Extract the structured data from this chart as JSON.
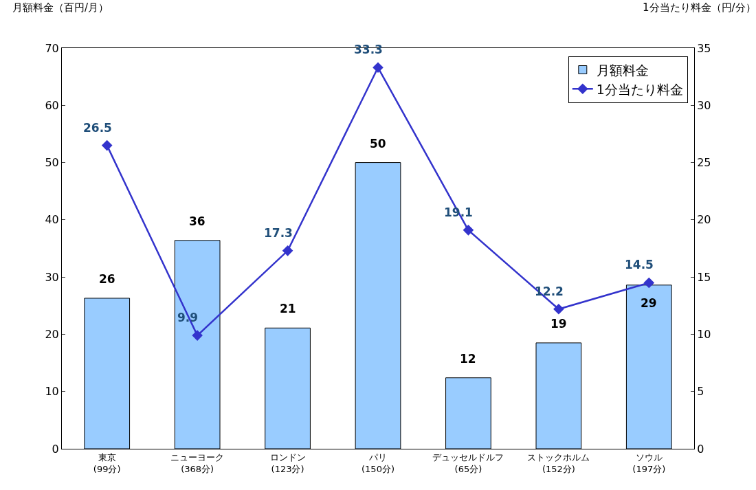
{
  "chart_data": {
    "type": "bar",
    "ylabel": "月額料金（百円/月）",
    "y2label": "1分当たり料金（円/分）",
    "categories": [
      "東京\n(99分)",
      "ニューヨーク\n(368分)",
      "ロンドン\n(123分)",
      "パリ\n(150分)",
      "デュッセルドルフ\n(65分)",
      "ストックホルム\n(152分)",
      "ソウル\n(197分)"
    ],
    "series": [
      {
        "name": "月額料金",
        "color": "#99ccff",
        "values": [
          26.3,
          36.4,
          21.1,
          50,
          12.4,
          18.5,
          28.6
        ],
        "value_labels": [
          "26",
          "36",
          "21",
          "50",
          "12",
          "19",
          "29"
        ]
      },
      {
        "name": "1分当たり料金",
        "type": "line",
        "axis": "y2",
        "color": "#3333cc",
        "marker": "diamond",
        "values": [
          26.5,
          9.9,
          17.3,
          33.3,
          19.1,
          12.2,
          14.5
        ],
        "value_labels": [
          "26.5",
          "9.9",
          "17.3",
          "33.3",
          "19.1",
          "12.2",
          "14.5"
        ]
      }
    ],
    "ylim": [
      0,
      70
    ],
    "yticks": [
      0,
      10,
      20,
      30,
      40,
      50,
      60,
      70
    ],
    "y2lim": [
      0,
      35
    ],
    "y2ticks": [
      0,
      5,
      10,
      15,
      20,
      25,
      30,
      35
    ],
    "grid": false,
    "legend": "top right"
  }
}
